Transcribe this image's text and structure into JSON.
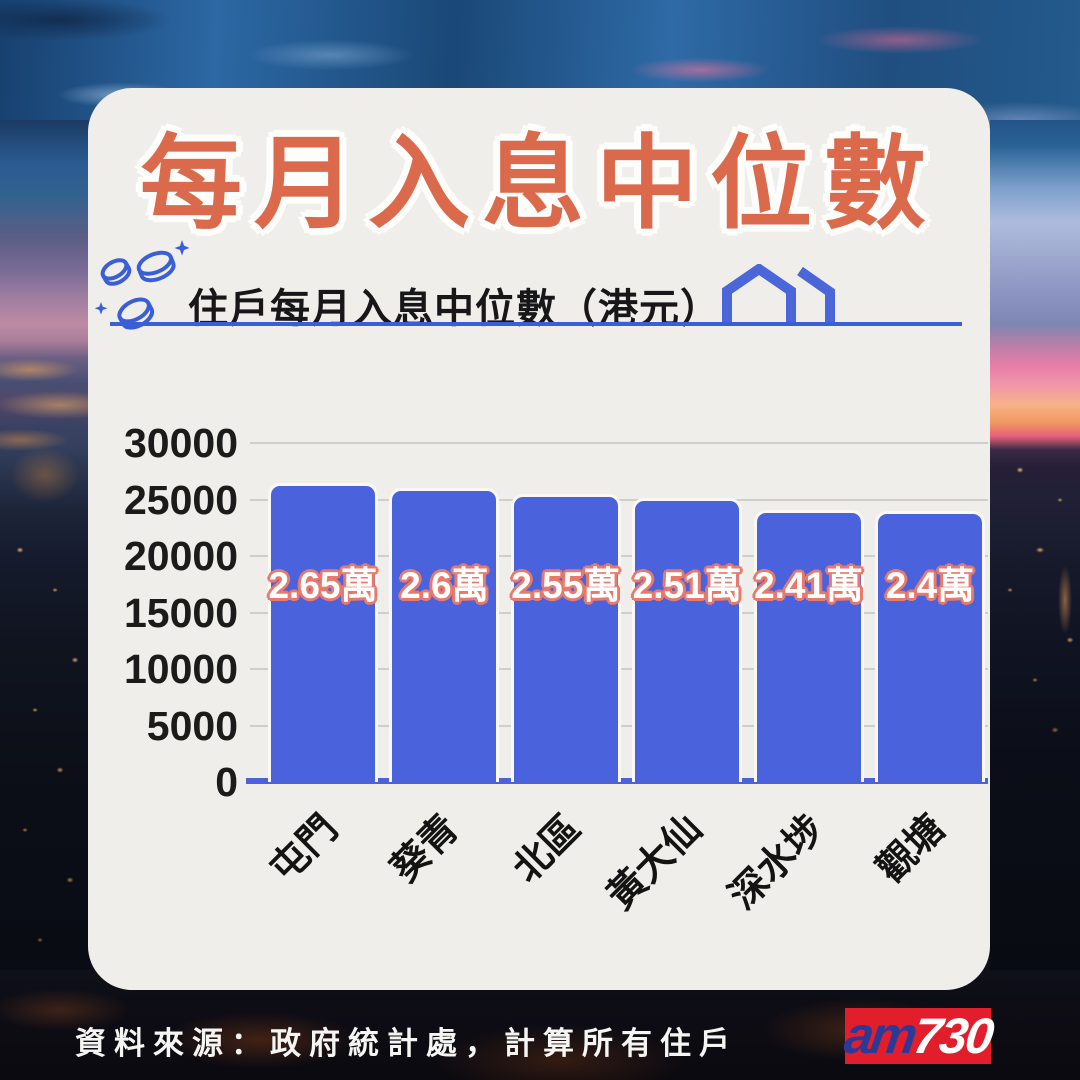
{
  "title": "每月入息中位數",
  "subtitle": "住戶每月入息中位數（港元）",
  "source_note": "資料來源：政府統計處，計算所有住戶",
  "logo": {
    "prefix": "am",
    "suffix": "730"
  },
  "colors": {
    "card_bg": "#efeeea",
    "title_orange": "#db6a4d",
    "accent_blue": "#3a5ed6",
    "bar_blue": "#4a63dd",
    "bar_label_outline": "#e8796b",
    "grid_gray": "#cfcec9",
    "logo_red": "#e31e2c",
    "logo_blue": "#2b3a96"
  },
  "chart_data": {
    "type": "bar",
    "title": "住戶每月入息中位數（港元）",
    "categories": [
      "屯門",
      "葵青",
      "北區",
      "黃大仙",
      "深水埗",
      "觀塘"
    ],
    "values": [
      26500,
      26000,
      25500,
      25100,
      24100,
      24000
    ],
    "bar_labels": [
      "2.65萬",
      "2.6萬",
      "2.55萬",
      "2.51萬",
      "2.41萬",
      "2.4萬"
    ],
    "xlabel": "",
    "ylabel": "",
    "ylim": [
      0,
      30000
    ],
    "yticks": [
      30000,
      25000,
      20000,
      15000,
      10000,
      5000,
      0
    ],
    "grid": true,
    "legend": false,
    "x_tick_rotation_deg": 45
  }
}
